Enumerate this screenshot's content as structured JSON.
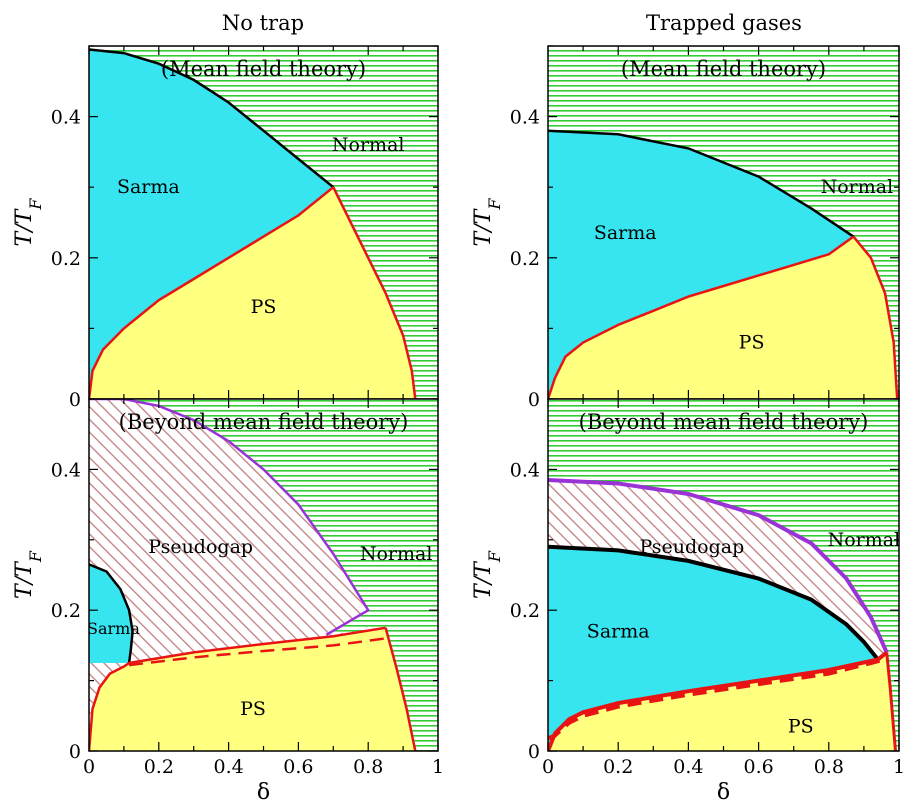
{
  "columns": [
    {
      "title": "No trap"
    },
    {
      "title": "Trapped gases"
    }
  ],
  "colors": {
    "normal_stripe": "#33cc33",
    "sarma_fill": "#33e6f0",
    "ps_fill": "#ffff80",
    "pseudogap_hatch": "#c08080",
    "boundary_black": "#000000",
    "boundary_red": "#e81414",
    "boundary_purple": "#9a33d6"
  },
  "chart_data": [
    {
      "type": "area",
      "id": "no-trap-mean-field",
      "column_title": "No trap",
      "caption": "(Mean field theory)",
      "xlabel": "",
      "ylabel": "T/T_F",
      "xlim": [
        0,
        1
      ],
      "ylim": [
        0,
        0.5
      ],
      "xticks": [],
      "yticks": [
        "0",
        "0.2",
        "0.4"
      ],
      "labels": {
        "sarma": "Sarma",
        "ps": "PS",
        "normal": "Normal"
      },
      "sarma_boundary": [
        [
          0,
          0.495
        ],
        [
          0.1,
          0.49
        ],
        [
          0.2,
          0.475
        ],
        [
          0.3,
          0.452
        ],
        [
          0.4,
          0.42
        ],
        [
          0.5,
          0.38
        ],
        [
          0.6,
          0.34
        ],
        [
          0.7,
          0.3
        ]
      ],
      "ps_upper": [
        [
          0,
          0
        ],
        [
          0.01,
          0.04
        ],
        [
          0.04,
          0.07
        ],
        [
          0.1,
          0.1
        ],
        [
          0.2,
          0.14
        ],
        [
          0.3,
          0.17
        ],
        [
          0.4,
          0.2
        ],
        [
          0.5,
          0.23
        ],
        [
          0.6,
          0.26
        ],
        [
          0.7,
          0.3
        ]
      ],
      "ps_right": [
        [
          0.7,
          0.3
        ],
        [
          0.78,
          0.22
        ],
        [
          0.85,
          0.15
        ],
        [
          0.9,
          0.09
        ],
        [
          0.925,
          0.04
        ],
        [
          0.935,
          0
        ]
      ]
    },
    {
      "type": "area",
      "id": "trapped-mean-field",
      "column_title": "Trapped gases",
      "caption": "(Mean field theory)",
      "xlabel": "",
      "ylabel": "T/T_F",
      "xlim": [
        0,
        1
      ],
      "ylim": [
        0,
        0.5
      ],
      "xticks": [],
      "yticks": [
        "0",
        "0.2",
        "0.4"
      ],
      "labels": {
        "sarma": "Sarma",
        "ps": "PS",
        "normal": "Normal"
      },
      "sarma_boundary": [
        [
          0,
          0.38
        ],
        [
          0.2,
          0.375
        ],
        [
          0.4,
          0.355
        ],
        [
          0.6,
          0.315
        ],
        [
          0.75,
          0.27
        ],
        [
          0.87,
          0.23
        ]
      ],
      "ps_upper": [
        [
          0,
          0
        ],
        [
          0.02,
          0.03
        ],
        [
          0.05,
          0.06
        ],
        [
          0.1,
          0.08
        ],
        [
          0.2,
          0.105
        ],
        [
          0.3,
          0.125
        ],
        [
          0.4,
          0.145
        ],
        [
          0.5,
          0.16
        ],
        [
          0.6,
          0.175
        ],
        [
          0.7,
          0.19
        ],
        [
          0.8,
          0.205
        ],
        [
          0.87,
          0.23
        ]
      ],
      "ps_right": [
        [
          0.87,
          0.23
        ],
        [
          0.92,
          0.2
        ],
        [
          0.96,
          0.15
        ],
        [
          0.985,
          0.08
        ],
        [
          0.995,
          0
        ]
      ]
    },
    {
      "type": "area",
      "id": "no-trap-beyond-mean-field",
      "column_title": "No trap",
      "caption": "(Beyond mean field theory)",
      "xlabel": "δ",
      "ylabel": "T/T_F",
      "xlim": [
        0,
        1
      ],
      "ylim": [
        0,
        0.5
      ],
      "xticks": [
        "0",
        "0.2",
        "0.4",
        "0.6",
        "0.8",
        "1"
      ],
      "yticks": [
        "0",
        "0.2",
        "0.4"
      ],
      "labels": {
        "sarma": "Sarma",
        "ps": "PS",
        "normal": "Normal",
        "pseudogap": "Pseudogap"
      },
      "pseudogap_boundary": [
        [
          0,
          0.5
        ],
        [
          0.1,
          0.5
        ],
        [
          0.2,
          0.49
        ],
        [
          0.3,
          0.47
        ],
        [
          0.4,
          0.44
        ],
        [
          0.5,
          0.4
        ],
        [
          0.6,
          0.35
        ],
        [
          0.7,
          0.28
        ],
        [
          0.8,
          0.2
        ],
        [
          0.68,
          0.165
        ]
      ],
      "sarma_boundary": [
        [
          0,
          0.265
        ],
        [
          0.05,
          0.255
        ],
        [
          0.09,
          0.23
        ],
        [
          0.115,
          0.2
        ],
        [
          0.125,
          0.17
        ],
        [
          0.12,
          0.145
        ],
        [
          0.115,
          0.125
        ]
      ],
      "ps_upper": [
        [
          0,
          0
        ],
        [
          0.01,
          0.06
        ],
        [
          0.03,
          0.09
        ],
        [
          0.06,
          0.11
        ],
        [
          0.1,
          0.12
        ],
        [
          0.115,
          0.125
        ],
        [
          0.3,
          0.14
        ],
        [
          0.5,
          0.152
        ],
        [
          0.7,
          0.163
        ],
        [
          0.85,
          0.175
        ]
      ],
      "ps_dashed": [
        [
          0.115,
          0.122
        ],
        [
          0.3,
          0.133
        ],
        [
          0.5,
          0.142
        ],
        [
          0.7,
          0.15
        ],
        [
          0.85,
          0.16
        ]
      ],
      "ps_right": [
        [
          0.85,
          0.175
        ],
        [
          0.88,
          0.12
        ],
        [
          0.91,
          0.06
        ],
        [
          0.935,
          0
        ]
      ]
    },
    {
      "type": "area",
      "id": "trapped-beyond-mean-field",
      "column_title": "Trapped gases",
      "caption": "(Beyond mean field theory)",
      "xlabel": "δ",
      "ylabel": "T/T_F",
      "xlim": [
        0,
        1
      ],
      "ylim": [
        0,
        0.5
      ],
      "xticks": [
        "0",
        "0.2",
        "0.4",
        "0.6",
        "0.8",
        "1"
      ],
      "yticks": [
        "0",
        "0.2",
        "0.4"
      ],
      "labels": {
        "sarma": "Sarma",
        "ps": "PS",
        "normal": "Normal",
        "pseudogap": "Pseudogap"
      },
      "pseudogap_boundary": [
        [
          0,
          0.385
        ],
        [
          0.2,
          0.38
        ],
        [
          0.4,
          0.365
        ],
        [
          0.6,
          0.335
        ],
        [
          0.75,
          0.295
        ],
        [
          0.85,
          0.245
        ],
        [
          0.92,
          0.19
        ],
        [
          0.965,
          0.14
        ]
      ],
      "sarma_boundary": [
        [
          0,
          0.29
        ],
        [
          0.2,
          0.285
        ],
        [
          0.4,
          0.27
        ],
        [
          0.6,
          0.245
        ],
        [
          0.75,
          0.215
        ],
        [
          0.85,
          0.18
        ],
        [
          0.9,
          0.155
        ],
        [
          0.94,
          0.13
        ]
      ],
      "ps_upper": [
        [
          0,
          0
        ],
        [
          0.02,
          0.025
        ],
        [
          0.06,
          0.045
        ],
        [
          0.1,
          0.055
        ],
        [
          0.2,
          0.068
        ],
        [
          0.4,
          0.085
        ],
        [
          0.6,
          0.1
        ],
        [
          0.8,
          0.115
        ],
        [
          0.94,
          0.13
        ],
        [
          0.965,
          0.14
        ]
      ],
      "ps_dashed": [
        [
          0,
          0.018
        ],
        [
          0.02,
          0.022
        ],
        [
          0.06,
          0.04
        ],
        [
          0.1,
          0.05
        ],
        [
          0.2,
          0.063
        ],
        [
          0.4,
          0.08
        ],
        [
          0.6,
          0.095
        ],
        [
          0.8,
          0.11
        ],
        [
          0.96,
          0.13
        ]
      ],
      "ps_right": [
        [
          0.965,
          0.14
        ],
        [
          0.975,
          0.09
        ],
        [
          0.985,
          0.03
        ],
        [
          0.99,
          0
        ]
      ]
    }
  ]
}
